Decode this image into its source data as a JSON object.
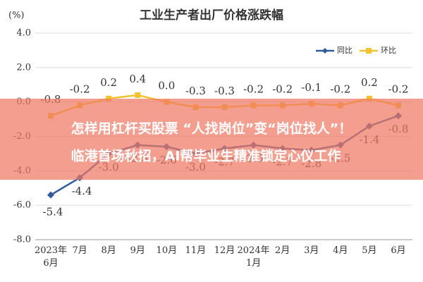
{
  "chart_data": {
    "type": "line",
    "title": "工业生产者出厂价格涨跌幅",
    "y_label": "(%)",
    "categories": [
      "2023年\n6月",
      "7月",
      "8月",
      "9月",
      "10月",
      "11月",
      "12月",
      "2024年\n1月",
      "2月",
      "3月",
      "4月",
      "5月",
      "6月"
    ],
    "series": [
      {
        "name": "同比",
        "color": "#2e5b9e",
        "values": [
          -5.4,
          -4.4,
          -3.0,
          -2.5,
          -2.6,
          -3.0,
          -2.7,
          -2.5,
          -2.7,
          -2.8,
          -2.5,
          -1.4,
          -0.8
        ],
        "value_labels": [
          "-5.4",
          "-4.4",
          "-3.0",
          "-2.5",
          "-2.6",
          "-3.0",
          "-2.7",
          "-2.5",
          "-2.7",
          "-2.8",
          "-2.5",
          "-1.4",
          "-0.8"
        ]
      },
      {
        "name": "环比",
        "color": "#f2c12e",
        "values": [
          -0.8,
          -0.2,
          0.2,
          0.4,
          0.0,
          -0.3,
          -0.3,
          -0.2,
          -0.2,
          -0.1,
          -0.2,
          0.2,
          -0.2
        ],
        "value_labels": [
          "-0.8",
          "-0.2",
          "0.2",
          "0.4",
          "0.0",
          "-0.3",
          "-0.3",
          "-0.2",
          "-0.2",
          "-0.1",
          "-0.2",
          "0.2",
          "-0.2"
        ]
      }
    ],
    "ylim": [
      -8,
      4
    ],
    "yticks": [
      {
        "value": -8,
        "label": "-8.0"
      },
      {
        "value": -6,
        "label": "-6.0"
      },
      {
        "value": -4,
        "label": "-4.0"
      },
      {
        "value": -2,
        "label": "-2.0"
      },
      {
        "value": 0,
        "label": "0.0"
      },
      {
        "value": 2,
        "label": "2.0"
      },
      {
        "value": 4,
        "label": "4.0"
      }
    ],
    "grid": true,
    "legend": "top-right"
  },
  "banner": {
    "line1": "怎样用杠杆买股票 “人找岗位”变“岗位找人”！",
    "line2": "临港首场秋招，AI帮毕业生精准锁定心仪工作"
  }
}
